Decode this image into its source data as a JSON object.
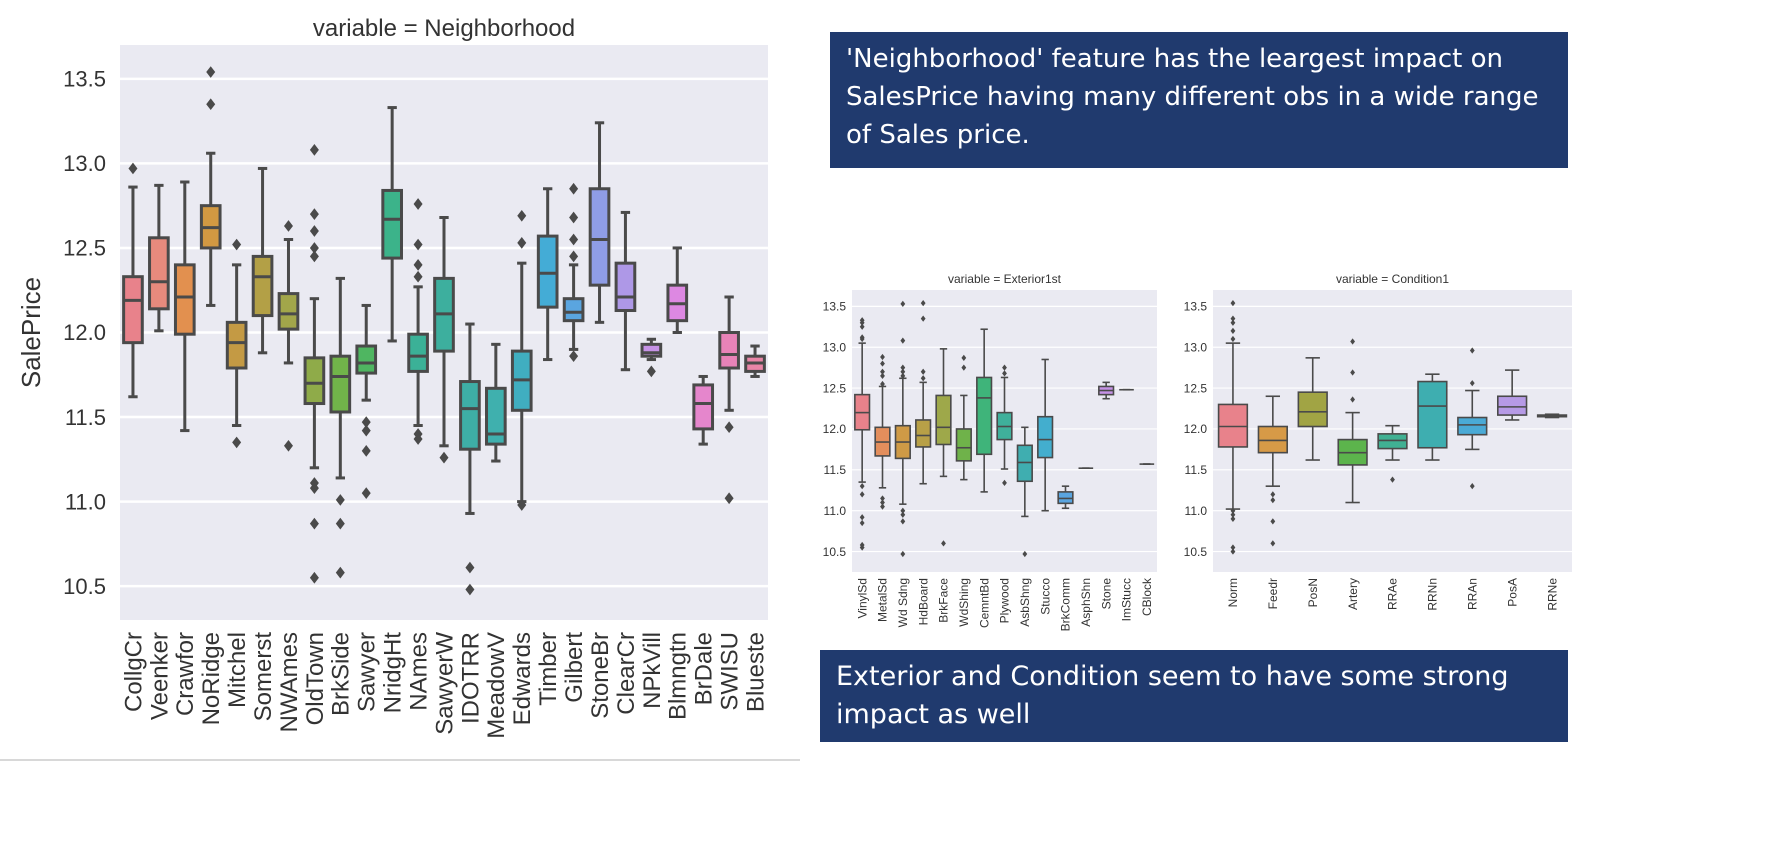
{
  "notes": {
    "top": "'Neighborhood' feature has the leargest impact on SalesPrice having many different obs in a wide range of Sales price.",
    "bottom": "Exterior and Condition seem to have some strong impact as well"
  },
  "chart_data": [
    {
      "type": "box",
      "title": "variable = Neighborhood",
      "ylabel": "SalePrice",
      "xlabel": "",
      "ylim": [
        10.3,
        13.7
      ],
      "yticks": [
        "10.5",
        "11.0",
        "11.5",
        "12.0",
        "12.5",
        "13.0",
        "13.5"
      ],
      "grid": true,
      "background": "#eaeaf2",
      "categories": [
        "CollgCr",
        "Veenker",
        "Crawfor",
        "NoRidge",
        "Mitchel",
        "Somerst",
        "NWAmes",
        "OldTown",
        "BrkSide",
        "Sawyer",
        "NridgHt",
        "NAmes",
        "SawyerW",
        "IDOTRR",
        "MeadowV",
        "Edwards",
        "Timber",
        "Gilbert",
        "StoneBr",
        "ClearCr",
        "NPkVill",
        "Blmngtn",
        "BrDale",
        "SWISU",
        "Blueste"
      ],
      "colors": [
        "#e8828b",
        "#e78a7d",
        "#e2904f",
        "#d29942",
        "#c49a44",
        "#b3a046",
        "#a2a64a",
        "#8fab49",
        "#71b44a",
        "#4fb661",
        "#3cb38a",
        "#3bb197",
        "#3daf9e",
        "#3eaea6",
        "#3fb0ae",
        "#40aec0",
        "#44acd6",
        "#5aa5e0",
        "#8f9de6",
        "#ae98e7",
        "#c692e6",
        "#dd88e2",
        "#e586cc",
        "#e883b8",
        "#e985a7"
      ],
      "boxes": [
        {
          "whislo": 11.62,
          "q1": 11.94,
          "med": 12.19,
          "q3": 12.33,
          "whishi": 12.86,
          "fliers": [
            12.97
          ]
        },
        {
          "whislo": 12.01,
          "q1": 12.14,
          "med": 12.3,
          "q3": 12.56,
          "whishi": 12.87,
          "fliers": []
        },
        {
          "whislo": 11.42,
          "q1": 11.99,
          "med": 12.21,
          "q3": 12.4,
          "whishi": 12.89,
          "fliers": []
        },
        {
          "whislo": 12.16,
          "q1": 12.5,
          "med": 12.62,
          "q3": 12.75,
          "whishi": 13.06,
          "fliers": [
            13.35,
            13.54
          ]
        },
        {
          "whislo": 11.45,
          "q1": 11.79,
          "med": 11.94,
          "q3": 12.06,
          "whishi": 12.4,
          "fliers": [
            11.35,
            12.52
          ]
        },
        {
          "whislo": 11.88,
          "q1": 12.1,
          "med": 12.33,
          "q3": 12.45,
          "whishi": 12.97,
          "fliers": []
        },
        {
          "whislo": 11.82,
          "q1": 12.02,
          "med": 12.11,
          "q3": 12.23,
          "whishi": 12.55,
          "fliers": [
            11.33,
            12.63
          ]
        },
        {
          "whislo": 11.2,
          "q1": 11.58,
          "med": 11.7,
          "q3": 11.85,
          "whishi": 12.2,
          "fliers": [
            10.55,
            10.87,
            11.08,
            11.11,
            12.45,
            12.5,
            12.6,
            12.7,
            13.08
          ]
        },
        {
          "whislo": 11.14,
          "q1": 11.53,
          "med": 11.74,
          "q3": 11.86,
          "whishi": 12.32,
          "fliers": [
            10.58,
            10.87,
            11.01
          ]
        },
        {
          "whislo": 11.6,
          "q1": 11.76,
          "med": 11.82,
          "q3": 11.92,
          "whishi": 12.16,
          "fliers": [
            11.05,
            11.3,
            11.42,
            11.47
          ]
        },
        {
          "whislo": 11.95,
          "q1": 12.44,
          "med": 12.67,
          "q3": 12.84,
          "whishi": 13.33,
          "fliers": []
        },
        {
          "whislo": 11.45,
          "q1": 11.77,
          "med": 11.86,
          "q3": 11.99,
          "whishi": 12.27,
          "fliers": [
            11.37,
            11.4,
            12.33,
            12.4,
            12.52,
            12.76
          ]
        },
        {
          "whislo": 11.33,
          "q1": 11.89,
          "med": 12.11,
          "q3": 12.32,
          "whishi": 12.68,
          "fliers": [
            11.26
          ]
        },
        {
          "whislo": 10.93,
          "q1": 11.31,
          "med": 11.55,
          "q3": 11.71,
          "whishi": 12.05,
          "fliers": [
            10.48,
            10.61
          ]
        },
        {
          "whislo": 11.24,
          "q1": 11.34,
          "med": 11.4,
          "q3": 11.67,
          "whishi": 11.93,
          "fliers": []
        },
        {
          "whislo": 11.0,
          "q1": 11.54,
          "med": 11.72,
          "q3": 11.89,
          "whishi": 12.41,
          "fliers": [
            10.98,
            12.53,
            12.69
          ]
        },
        {
          "whislo": 11.84,
          "q1": 12.15,
          "med": 12.35,
          "q3": 12.57,
          "whishi": 12.85,
          "fliers": []
        },
        {
          "whislo": 11.9,
          "q1": 12.07,
          "med": 12.12,
          "q3": 12.2,
          "whishi": 12.4,
          "fliers": [
            11.86,
            12.45,
            12.55,
            12.68,
            12.85
          ]
        },
        {
          "whislo": 12.06,
          "q1": 12.28,
          "med": 12.55,
          "q3": 12.85,
          "whishi": 13.24,
          "fliers": []
        },
        {
          "whislo": 11.78,
          "q1": 12.13,
          "med": 12.21,
          "q3": 12.41,
          "whishi": 12.71,
          "fliers": []
        },
        {
          "whislo": 11.84,
          "q1": 11.86,
          "med": 11.88,
          "q3": 11.93,
          "whishi": 11.96,
          "fliers": [
            11.77
          ]
        },
        {
          "whislo": 12.0,
          "q1": 12.07,
          "med": 12.17,
          "q3": 12.28,
          "whishi": 12.5,
          "fliers": []
        },
        {
          "whislo": 11.34,
          "q1": 11.43,
          "med": 11.58,
          "q3": 11.69,
          "whishi": 11.74,
          "fliers": []
        },
        {
          "whislo": 11.54,
          "q1": 11.79,
          "med": 11.87,
          "q3": 12.0,
          "whishi": 12.21,
          "fliers": [
            11.02,
            11.44
          ]
        },
        {
          "whislo": 11.74,
          "q1": 11.77,
          "med": 11.82,
          "q3": 11.86,
          "whishi": 11.92,
          "fliers": []
        }
      ]
    },
    {
      "type": "box",
      "title": "variable = Exterior1st",
      "ylabel": "",
      "xlabel": "",
      "ylim": [
        10.25,
        13.7
      ],
      "yticks": [
        "10.5",
        "11.0",
        "11.5",
        "12.0",
        "12.5",
        "13.0",
        "13.5"
      ],
      "grid": true,
      "background": "#eaeaf2",
      "categories": [
        "VinylSd",
        "MetalSd",
        "Wd Sdng",
        "HdBoard",
        "BrkFace",
        "WdShing",
        "CemntBd",
        "Plywood",
        "AsbShng",
        "Stucco",
        "BrkComm",
        "AsphShn",
        "Stone",
        "ImStucc",
        "CBlock"
      ],
      "colors": [
        "#e8828b",
        "#e38e5c",
        "#cf9a46",
        "#b8a047",
        "#9ea84a",
        "#6fb24a",
        "#3fb47a",
        "#3fb09b",
        "#3faeb0",
        "#43aece",
        "#5aa5e0",
        "#8f9de6",
        "#c692e6",
        "#df88e0",
        "#e886c0"
      ],
      "boxes": [
        {
          "whislo": 11.35,
          "q1": 11.99,
          "med": 12.2,
          "q3": 12.42,
          "whishi": 13.05,
          "fliers": [
            10.55,
            10.58,
            10.85,
            10.92,
            11.2,
            11.3,
            13.1,
            13.12,
            13.25,
            13.3,
            13.33
          ]
        },
        {
          "whislo": 11.28,
          "q1": 11.67,
          "med": 11.84,
          "q3": 12.02,
          "whishi": 12.52,
          "fliers": [
            11.05,
            11.1,
            11.15,
            12.55,
            12.65,
            12.7,
            12.8,
            12.88
          ]
        },
        {
          "whislo": 11.08,
          "q1": 11.64,
          "med": 11.84,
          "q3": 12.04,
          "whishi": 12.62,
          "fliers": [
            10.47,
            10.87,
            10.95,
            11.0,
            12.65,
            12.7,
            12.75,
            13.08,
            13.53
          ]
        },
        {
          "whislo": 11.33,
          "q1": 11.78,
          "med": 11.92,
          "q3": 12.11,
          "whishi": 12.57,
          "fliers": [
            12.62,
            12.7,
            13.35,
            13.54
          ]
        },
        {
          "whislo": 11.42,
          "q1": 11.81,
          "med": 12.02,
          "q3": 12.41,
          "whishi": 12.98,
          "fliers": [
            10.6
          ]
        },
        {
          "whislo": 11.38,
          "q1": 11.61,
          "med": 11.77,
          "q3": 12.0,
          "whishi": 12.41,
          "fliers": [
            12.75,
            12.87
          ]
        },
        {
          "whislo": 11.23,
          "q1": 11.69,
          "med": 12.38,
          "q3": 12.63,
          "whishi": 13.22,
          "fliers": []
        },
        {
          "whislo": 11.51,
          "q1": 11.87,
          "med": 12.03,
          "q3": 12.2,
          "whishi": 12.63,
          "fliers": [
            11.34,
            12.68,
            12.75
          ]
        },
        {
          "whislo": 10.93,
          "q1": 11.36,
          "med": 11.59,
          "q3": 11.8,
          "whishi": 12.02,
          "fliers": [
            10.47
          ]
        },
        {
          "whislo": 11.0,
          "q1": 11.65,
          "med": 11.87,
          "q3": 12.15,
          "whishi": 12.85,
          "fliers": []
        },
        {
          "whislo": 11.03,
          "q1": 11.09,
          "med": 11.15,
          "q3": 11.23,
          "whishi": 11.3,
          "fliers": []
        },
        {
          "whislo": 11.52,
          "q1": 11.52,
          "med": 11.52,
          "q3": 11.52,
          "whishi": 11.52,
          "fliers": []
        },
        {
          "whislo": 12.37,
          "q1": 12.42,
          "med": 12.47,
          "q3": 12.52,
          "whishi": 12.57,
          "fliers": []
        },
        {
          "whislo": 12.48,
          "q1": 12.48,
          "med": 12.48,
          "q3": 12.48,
          "whishi": 12.48,
          "fliers": []
        },
        {
          "whislo": 11.57,
          "q1": 11.57,
          "med": 11.57,
          "q3": 11.57,
          "whishi": 11.57,
          "fliers": []
        }
      ]
    },
    {
      "type": "box",
      "title": "variable = Condition1",
      "ylabel": "",
      "xlabel": "",
      "ylim": [
        10.25,
        13.7
      ],
      "yticks": [
        "10.5",
        "11.0",
        "11.5",
        "12.0",
        "12.5",
        "13.0",
        "13.5"
      ],
      "grid": true,
      "background": "#eaeaf2",
      "categories": [
        "Norm",
        "Feedr",
        "PosN",
        "Artery",
        "RRAe",
        "RRNn",
        "RRAn",
        "PosA",
        "RRNe"
      ],
      "colors": [
        "#e8828b",
        "#d79a47",
        "#a1a444",
        "#5cb44c",
        "#40b093",
        "#3eaeb0",
        "#4aaad6",
        "#b69ae6",
        "#e088da"
      ],
      "boxes": [
        {
          "whislo": 11.02,
          "q1": 11.78,
          "med": 12.03,
          "q3": 12.3,
          "whishi": 13.05,
          "fliers": [
            10.5,
            10.55,
            10.9,
            10.95,
            11.0,
            13.1,
            13.2,
            13.3,
            13.35,
            13.54
          ]
        },
        {
          "whislo": 11.3,
          "q1": 11.71,
          "med": 11.86,
          "q3": 12.03,
          "whishi": 12.4,
          "fliers": [
            10.6,
            10.87,
            11.13,
            11.2
          ]
        },
        {
          "whislo": 11.62,
          "q1": 12.03,
          "med": 12.21,
          "q3": 12.45,
          "whishi": 12.87,
          "fliers": []
        },
        {
          "whislo": 11.1,
          "q1": 11.56,
          "med": 11.71,
          "q3": 11.87,
          "whishi": 12.2,
          "fliers": [
            12.36,
            12.69,
            13.07
          ]
        },
        {
          "whislo": 11.62,
          "q1": 11.76,
          "med": 11.86,
          "q3": 11.94,
          "whishi": 12.04,
          "fliers": [
            11.38
          ]
        },
        {
          "whislo": 11.62,
          "q1": 11.77,
          "med": 12.28,
          "q3": 12.58,
          "whishi": 12.67,
          "fliers": []
        },
        {
          "whislo": 11.75,
          "q1": 11.93,
          "med": 12.05,
          "q3": 12.14,
          "whishi": 12.47,
          "fliers": [
            11.3,
            12.56,
            12.96
          ]
        },
        {
          "whislo": 12.11,
          "q1": 12.17,
          "med": 12.27,
          "q3": 12.4,
          "whishi": 12.72,
          "fliers": []
        },
        {
          "whislo": 12.14,
          "q1": 12.15,
          "med": 12.16,
          "q3": 12.17,
          "whishi": 12.18,
          "fliers": []
        }
      ]
    }
  ]
}
